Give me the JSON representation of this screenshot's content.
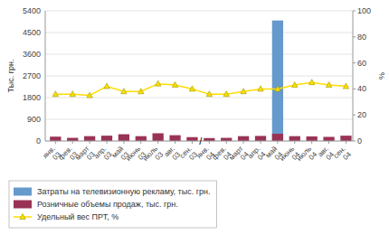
{
  "chart_data": {
    "type": "bar",
    "categories": [
      "янв.\n03",
      "фев.\n03",
      "март\n03",
      "апр.\n03",
      "май\n03",
      "июнь\n03",
      "июль\n03",
      "авг.\n03",
      "сен.\n03",
      "янв.\n04",
      "фев.\n04",
      "март\n04",
      "апр.\n04",
      "май\n04",
      "июнь\n04",
      "июль\n04",
      "авг.\n04",
      "сен.\n04"
    ],
    "series": [
      {
        "name": "Затраты на телевизионную рекламу, тыс. грн.",
        "color": "#6699CC",
        "values": [
          0,
          0,
          0,
          0,
          0,
          0,
          0,
          0,
          0,
          0,
          0,
          0,
          0,
          5000,
          0,
          0,
          0,
          0
        ]
      },
      {
        "name": "Розничные объемы продаж, тыс. грн.",
        "color": "#993355",
        "values": [
          180,
          130,
          200,
          220,
          280,
          200,
          320,
          240,
          160,
          120,
          130,
          200,
          210,
          300,
          200,
          190,
          170,
          220
        ]
      },
      {
        "name": "Удельный вес ПРТ, %",
        "type": "line",
        "axis": "y2",
        "color": "#FFDD00",
        "marker": "triangle",
        "values": [
          36,
          36,
          35,
          42,
          38,
          38,
          44,
          43,
          40,
          36,
          36,
          38,
          40,
          40,
          43,
          45,
          43,
          42
        ]
      }
    ],
    "ylabel": "Тыс. грн.",
    "y2label": "%",
    "ylim": [
      0,
      5400
    ],
    "yticks": [
      0,
      900,
      1800,
      2700,
      3600,
      4500,
      5400
    ],
    "y2lim": [
      0,
      100
    ],
    "y2ticks": [
      0,
      20,
      40,
      60,
      80,
      100
    ],
    "grid": true,
    "legend": "bottom",
    "annotations": [
      "/"
    ]
  }
}
